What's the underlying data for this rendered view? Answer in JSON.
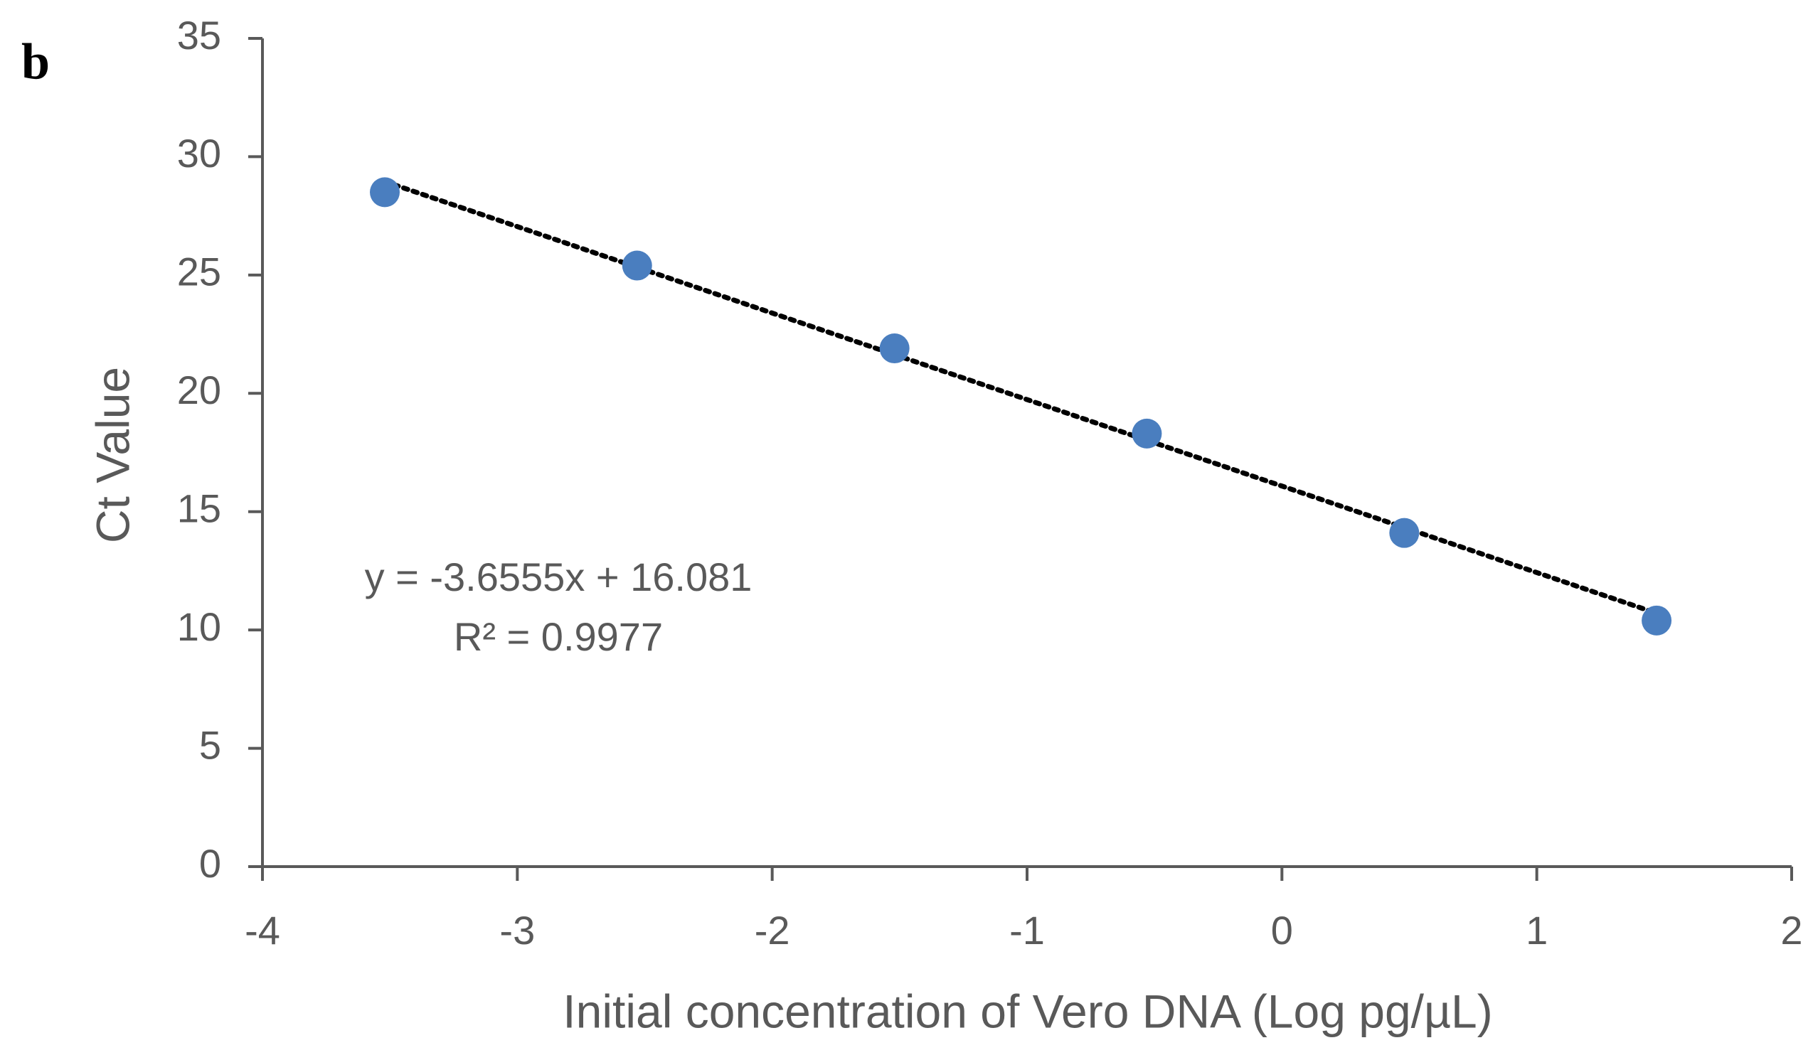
{
  "chart_data": {
    "type": "scatter",
    "panel_label": "b",
    "x_label": "Initial concentration of Vero DNA (Log pg/µL)",
    "y_label": "Ct Value",
    "x": [
      -3.52,
      -2.53,
      -1.52,
      -0.53,
      0.48,
      1.47
    ],
    "series": [
      {
        "color": "#4a7ebf",
        "values": [
          28.5,
          25.4,
          21.9,
          18.3,
          14.1,
          10.4
        ]
      }
    ],
    "trendline": {
      "slope": -3.6555,
      "intercept": 16.081,
      "equation": "y = -3.6555x + 16.081",
      "r_squared": "R² = 0.9977",
      "color": "#000000"
    },
    "xlim": [
      -4,
      2
    ],
    "xticks": [
      -4,
      -3,
      -2,
      -1,
      0,
      1,
      2
    ],
    "ylim": [
      0,
      35
    ],
    "yticks": [
      0,
      5,
      10,
      15,
      20,
      25,
      30,
      35
    ],
    "grid": false
  }
}
